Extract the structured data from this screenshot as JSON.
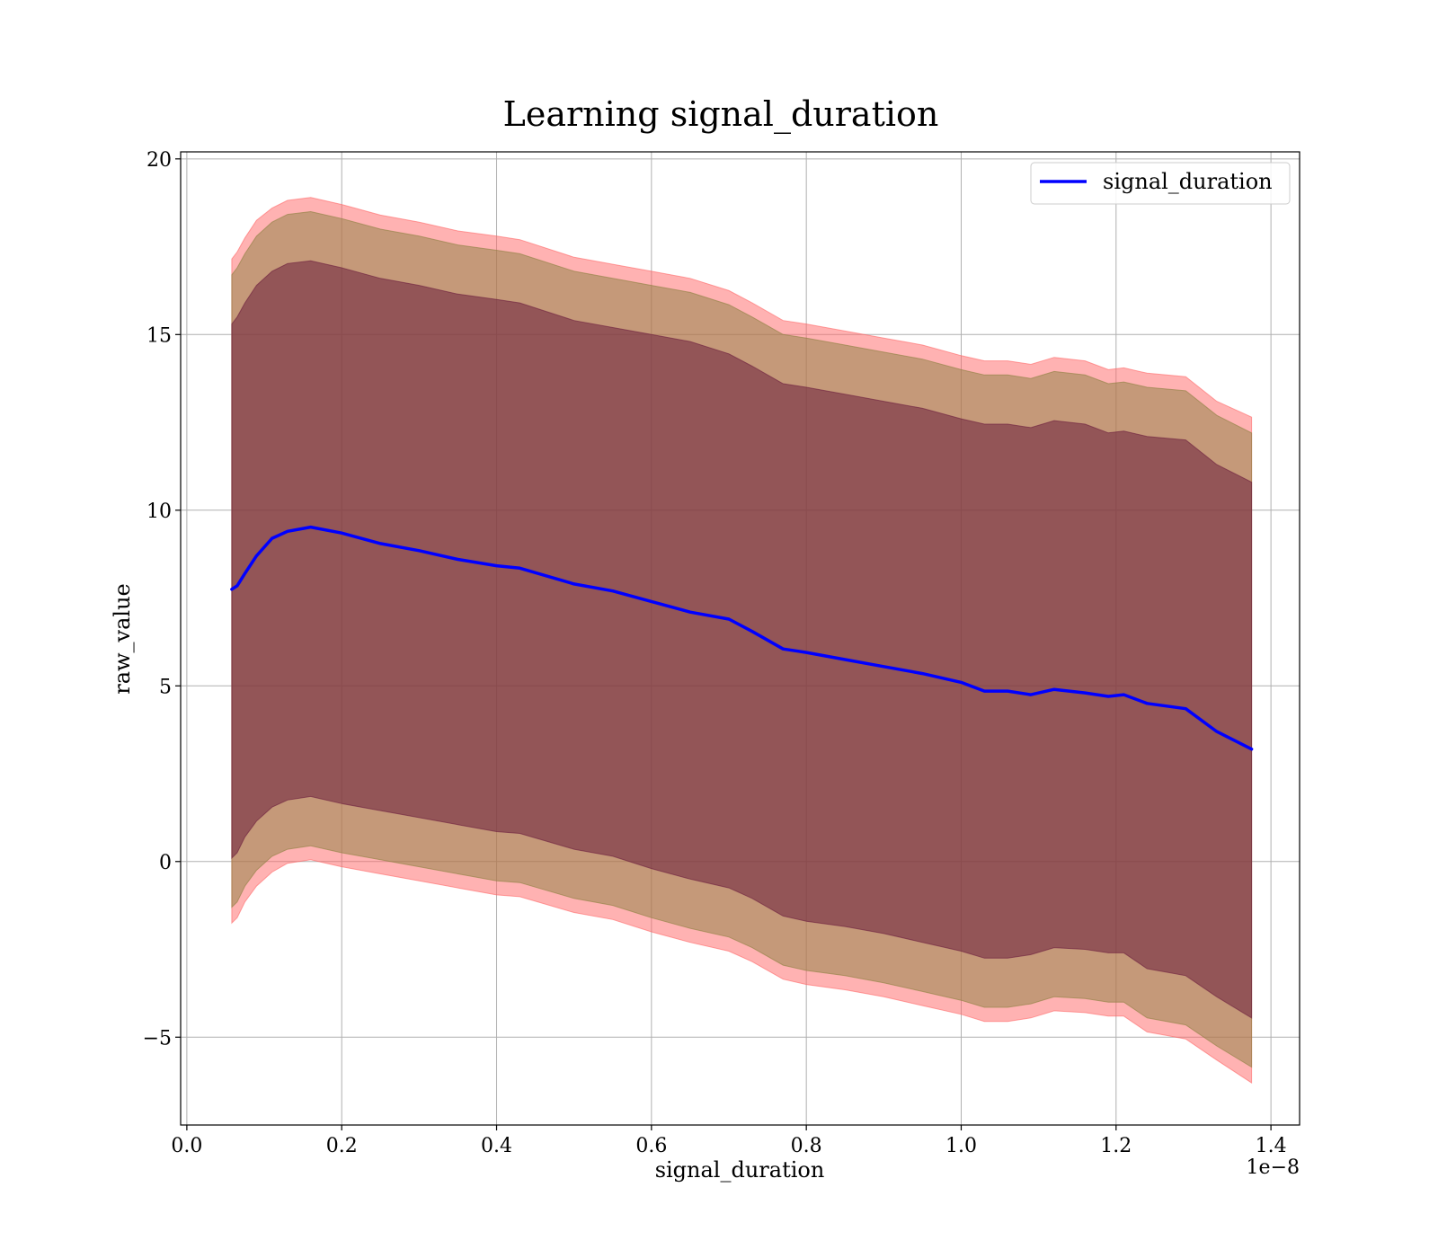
{
  "chart_data": {
    "type": "line",
    "title": "Learning signal_duration",
    "xlabel": "signal_duration",
    "ylabel": "raw_value",
    "x_offset_label": "1e−8",
    "xlim": [
      -0.008,
      1.437
    ],
    "ylim": [
      -7.5,
      20.2
    ],
    "grid": true,
    "legend_position": "top-right",
    "x_ticks": [
      {
        "value": 0.0,
        "label": "0.0"
      },
      {
        "value": 0.2,
        "label": "0.2"
      },
      {
        "value": 0.4,
        "label": "0.4"
      },
      {
        "value": 0.6,
        "label": "0.6"
      },
      {
        "value": 0.8,
        "label": "0.8"
      },
      {
        "value": 1.0,
        "label": "1.0"
      },
      {
        "value": 1.2,
        "label": "1.2"
      },
      {
        "value": 1.4,
        "label": "1.4"
      }
    ],
    "y_ticks": [
      {
        "value": -5,
        "label": "−5"
      },
      {
        "value": 0,
        "label": "0"
      },
      {
        "value": 5,
        "label": "5"
      },
      {
        "value": 10,
        "label": "10"
      },
      {
        "value": 15,
        "label": "15"
      },
      {
        "value": 20,
        "label": "20"
      }
    ],
    "x": [
      0.058,
      0.065,
      0.075,
      0.09,
      0.11,
      0.13,
      0.16,
      0.2,
      0.25,
      0.3,
      0.35,
      0.4,
      0.43,
      0.5,
      0.55,
      0.6,
      0.65,
      0.7,
      0.73,
      0.77,
      0.8,
      0.85,
      0.9,
      0.95,
      1.0,
      1.03,
      1.06,
      1.09,
      1.12,
      1.16,
      1.19,
      1.21,
      1.24,
      1.29,
      1.33,
      1.375
    ],
    "series": [
      {
        "name": "signal_duration",
        "color": "#0000ff",
        "values": [
          7.75,
          7.85,
          8.2,
          8.7,
          9.2,
          9.4,
          9.52,
          9.35,
          9.05,
          8.85,
          8.6,
          8.42,
          8.35,
          7.9,
          7.7,
          7.4,
          7.1,
          6.9,
          6.55,
          6.05,
          5.95,
          5.75,
          5.55,
          5.35,
          5.1,
          4.85,
          4.85,
          4.75,
          4.9,
          4.8,
          4.7,
          4.75,
          4.5,
          4.35,
          3.7,
          3.2
        ]
      }
    ],
    "bands": [
      {
        "color": "#ff6666",
        "opacity": 0.5,
        "upper": [
          17.15,
          17.35,
          17.75,
          18.25,
          18.6,
          18.82,
          18.9,
          18.7,
          18.4,
          18.2,
          17.95,
          17.8,
          17.7,
          17.2,
          17.0,
          16.8,
          16.6,
          16.25,
          15.9,
          15.4,
          15.3,
          15.1,
          14.9,
          14.7,
          14.4,
          14.25,
          14.25,
          14.15,
          14.35,
          14.25,
          14.0,
          14.05,
          13.9,
          13.8,
          13.1,
          12.65
        ],
        "lower": [
          -1.75,
          -1.6,
          -1.15,
          -0.7,
          -0.3,
          -0.05,
          0.05,
          -0.15,
          -0.35,
          -0.55,
          -0.75,
          -0.95,
          -1.0,
          -1.45,
          -1.65,
          -2.0,
          -2.3,
          -2.55,
          -2.85,
          -3.35,
          -3.5,
          -3.65,
          -3.85,
          -4.1,
          -4.35,
          -4.55,
          -4.55,
          -4.45,
          -4.25,
          -4.3,
          -4.4,
          -4.4,
          -4.85,
          -5.05,
          -5.65,
          -6.3
        ]
      },
      {
        "color": "#8c8040",
        "opacity": 0.5,
        "upper": [
          16.7,
          16.9,
          17.3,
          17.8,
          18.2,
          18.42,
          18.5,
          18.3,
          18.0,
          17.8,
          17.55,
          17.4,
          17.3,
          16.8,
          16.6,
          16.4,
          16.2,
          15.85,
          15.5,
          15.0,
          14.9,
          14.7,
          14.5,
          14.3,
          14.0,
          13.85,
          13.85,
          13.75,
          13.95,
          13.85,
          13.6,
          13.65,
          13.5,
          13.4,
          12.7,
          12.2
        ],
        "lower": [
          -1.3,
          -1.15,
          -0.7,
          -0.25,
          0.15,
          0.35,
          0.45,
          0.25,
          0.05,
          -0.15,
          -0.35,
          -0.55,
          -0.6,
          -1.05,
          -1.25,
          -1.6,
          -1.9,
          -2.15,
          -2.45,
          -2.95,
          -3.1,
          -3.25,
          -3.45,
          -3.7,
          -3.95,
          -4.15,
          -4.15,
          -4.05,
          -3.85,
          -3.9,
          -4.0,
          -4.0,
          -4.45,
          -4.65,
          -5.25,
          -5.85
        ]
      },
      {
        "color": "#6a1d3d",
        "opacity": 0.55,
        "upper": [
          15.3,
          15.5,
          15.9,
          16.4,
          16.8,
          17.02,
          17.1,
          16.9,
          16.6,
          16.4,
          16.15,
          16.0,
          15.9,
          15.4,
          15.2,
          15.0,
          14.8,
          14.45,
          14.1,
          13.6,
          13.5,
          13.3,
          13.1,
          12.9,
          12.6,
          12.45,
          12.45,
          12.35,
          12.55,
          12.45,
          12.2,
          12.25,
          12.1,
          12.0,
          11.3,
          10.8
        ],
        "lower": [
          0.1,
          0.25,
          0.7,
          1.15,
          1.55,
          1.75,
          1.85,
          1.65,
          1.45,
          1.25,
          1.05,
          0.85,
          0.8,
          0.35,
          0.15,
          -0.2,
          -0.5,
          -0.75,
          -1.05,
          -1.55,
          -1.7,
          -1.85,
          -2.05,
          -2.3,
          -2.55,
          -2.75,
          -2.75,
          -2.65,
          -2.45,
          -2.5,
          -2.6,
          -2.6,
          -3.05,
          -3.25,
          -3.85,
          -4.45
        ]
      }
    ]
  }
}
